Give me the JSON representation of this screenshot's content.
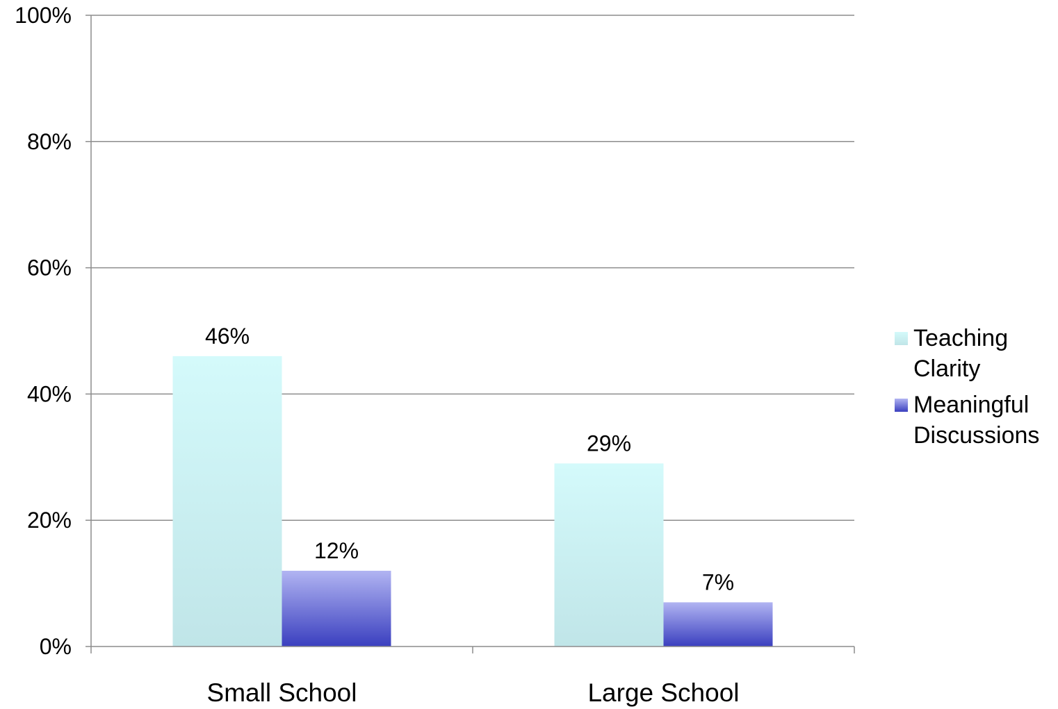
{
  "chart_data": {
    "type": "bar",
    "categories": [
      "Small School",
      "Large School"
    ],
    "series": [
      {
        "name": "Teaching Clarity",
        "values": [
          46,
          29
        ],
        "labels": [
          "46%",
          "29%"
        ],
        "color_top": "#d4fafb",
        "color_bottom": "#c0e5e8"
      },
      {
        "name": "Meaningful Discussions",
        "values": [
          12,
          7
        ],
        "labels": [
          "12%",
          "7%"
        ],
        "color_top": "#b1b4f2",
        "color_bottom": "#3a3fbf"
      }
    ],
    "legend": [
      {
        "lines": [
          "Teaching",
          "Clarity"
        ]
      },
      {
        "lines": [
          "Meaningful",
          "Discussions"
        ]
      }
    ],
    "ylim": [
      0,
      100
    ],
    "yticks": [
      0,
      20,
      40,
      60,
      80,
      100
    ],
    "ytick_labels": [
      "0%",
      "20%",
      "40%",
      "60%",
      "80%",
      "100%"
    ],
    "grid": true,
    "legend_position": "right",
    "title": "",
    "xlabel": "",
    "ylabel": ""
  }
}
